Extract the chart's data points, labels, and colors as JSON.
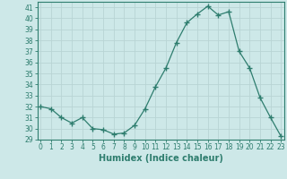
{
  "x": [
    0,
    1,
    2,
    3,
    4,
    5,
    6,
    7,
    8,
    9,
    10,
    11,
    12,
    13,
    14,
    15,
    16,
    17,
    18,
    19,
    20,
    21,
    22,
    23
  ],
  "y": [
    32,
    31.8,
    31,
    30.5,
    31,
    30,
    29.9,
    29.5,
    29.6,
    30.3,
    31.8,
    33.8,
    35.5,
    37.8,
    39.6,
    40.4,
    41.1,
    40.3,
    40.6,
    37,
    35.5,
    32.8,
    31,
    29.3
  ],
  "line_color": "#2e7d6e",
  "marker": "+",
  "marker_size": 4,
  "bg_color": "#cde8e8",
  "grid_color": "#b8d4d4",
  "xlabel": "Humidex (Indice chaleur)",
  "ylim": [
    29,
    41.5
  ],
  "xlim": [
    -0.3,
    23.3
  ],
  "yticks": [
    29,
    30,
    31,
    32,
    33,
    34,
    35,
    36,
    37,
    38,
    39,
    40,
    41
  ],
  "xticks": [
    0,
    1,
    2,
    3,
    4,
    5,
    6,
    7,
    8,
    9,
    10,
    11,
    12,
    13,
    14,
    15,
    16,
    17,
    18,
    19,
    20,
    21,
    22,
    23
  ],
  "tick_color": "#2e7d6e",
  "label_fontsize": 5.5,
  "xlabel_fontsize": 7
}
